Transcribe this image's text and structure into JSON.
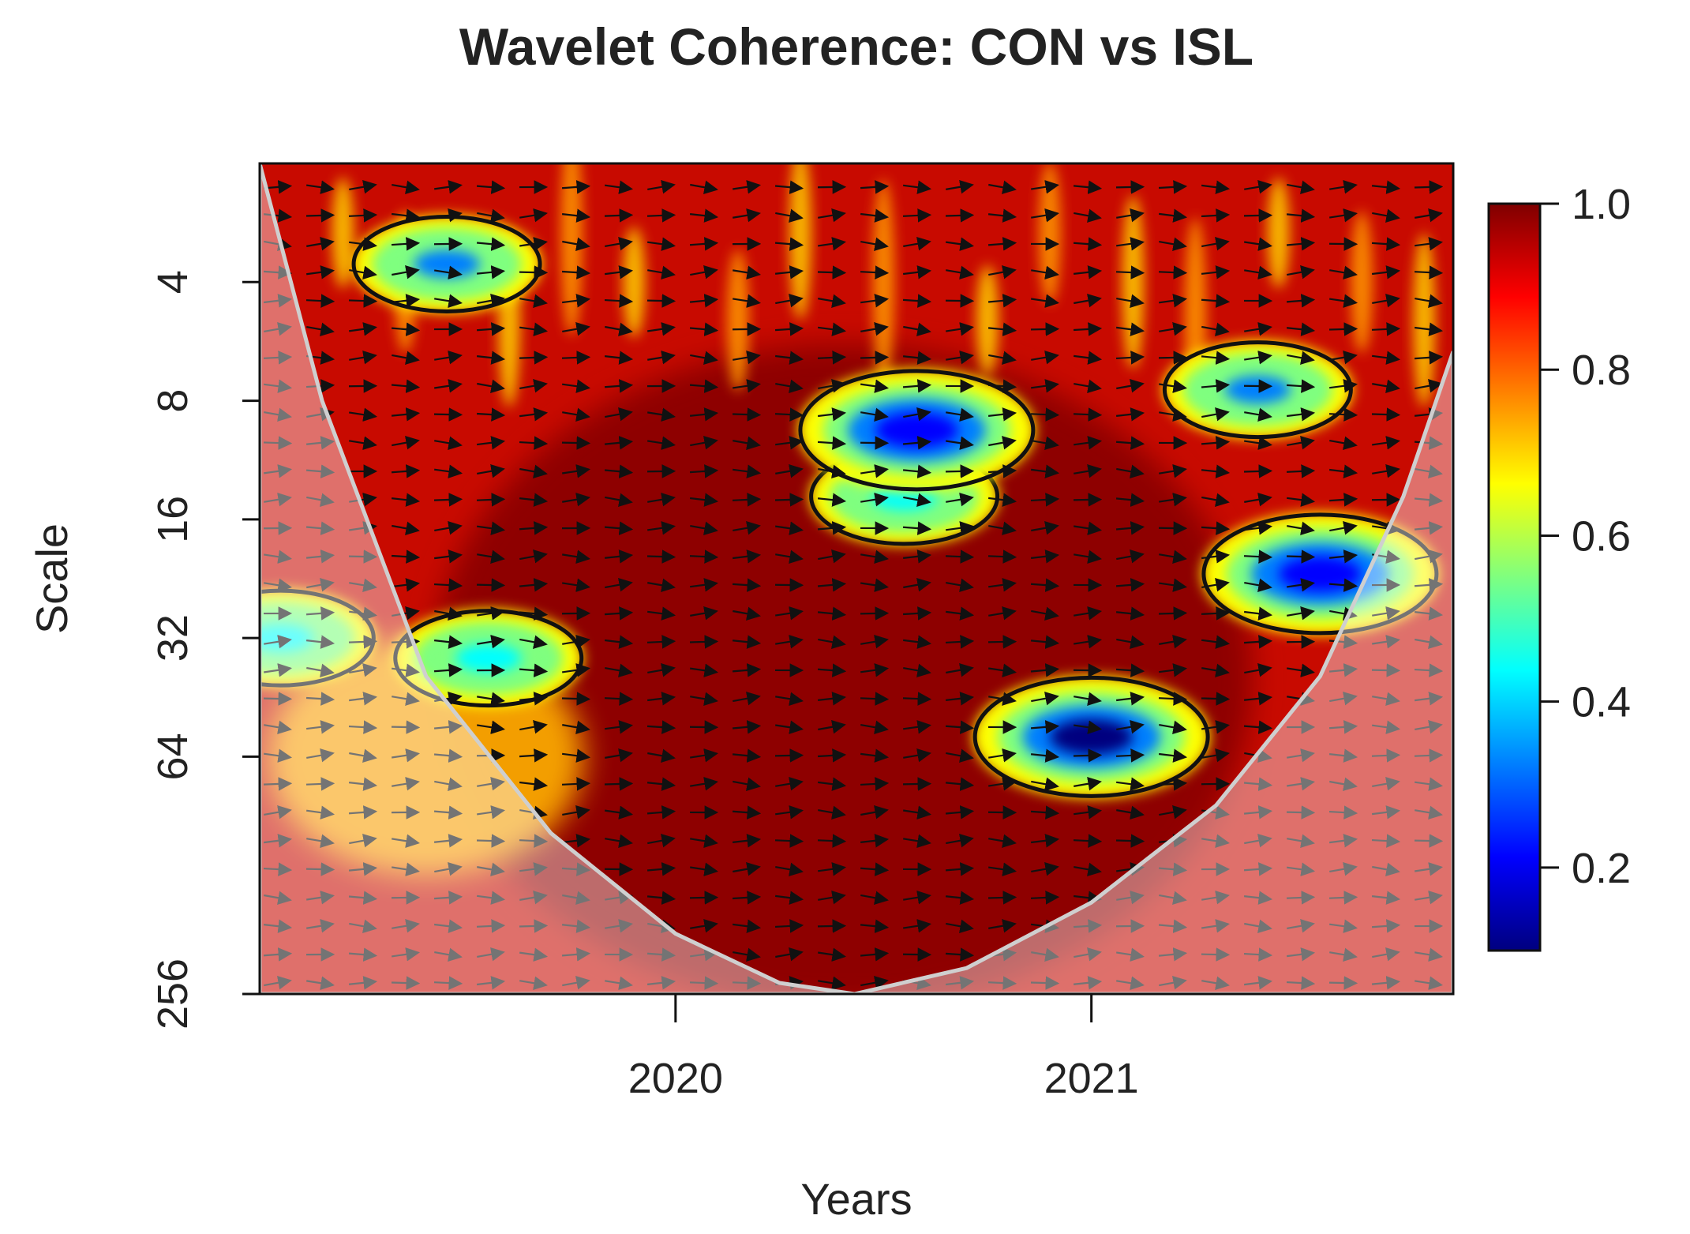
{
  "chart_data": {
    "type": "heatmap",
    "title": "Wavelet Coherence: CON vs ISL",
    "xlabel": "Years",
    "ylabel": "Scale",
    "x_ticks": [
      "2020",
      "2021"
    ],
    "x_tick_values": [
      2020.0,
      2021.0
    ],
    "xlim": [
      2019.0,
      2021.87
    ],
    "y_ticks": [
      "4",
      "8",
      "16",
      "32",
      "64",
      "256"
    ],
    "y_tick_values": [
      4,
      8,
      16,
      32,
      64,
      256
    ],
    "ylim": [
      2,
      256
    ],
    "y_scale": "log2, reversed (small scales at top)",
    "colorbar": {
      "ticks": [
        "1.0",
        "0.8",
        "0.6",
        "0.4",
        "0.2"
      ],
      "tick_values": [
        1.0,
        0.8,
        0.6,
        0.4,
        0.2
      ],
      "range": [
        0.1,
        1.0
      ],
      "colors": [
        "#00007f",
        "#0000ff",
        "#007fff",
        "#00ffff",
        "#7fff7f",
        "#ffff00",
        "#ff7f00",
        "#ff0000",
        "#7f0000"
      ]
    },
    "cone_of_influence": {
      "x": [
        2019.0,
        2019.15,
        2019.4,
        2019.7,
        2020.0,
        2020.25,
        2020.43,
        2020.7,
        2021.0,
        2021.3,
        2021.55,
        2021.75,
        2021.87
      ],
      "scale": [
        2,
        8,
        40,
        100,
        180,
        240,
        256,
        220,
        150,
        85,
        40,
        14,
        6
      ]
    },
    "regions": [
      {
        "label": "low-coherence island",
        "x": 2019.55,
        "scale": 36,
        "coherence": 0.45
      },
      {
        "label": "low-coherence island",
        "x": 2019.05,
        "scale": 32,
        "coherence": 0.4
      },
      {
        "label": "low-coherence island",
        "x": 2020.55,
        "scale": 14,
        "coherence": 0.45
      },
      {
        "label": "low-coherence island",
        "x": 2020.58,
        "scale": 9.5,
        "coherence": 0.2
      },
      {
        "label": "low-coherence island",
        "x": 2021.0,
        "scale": 57,
        "coherence": 0.15
      },
      {
        "label": "low-coherence island",
        "x": 2021.55,
        "scale": 22,
        "coherence": 0.2
      },
      {
        "label": "low-coherence island",
        "x": 2019.45,
        "scale": 3.6,
        "coherence": 0.35
      },
      {
        "label": "low-coherence island",
        "x": 2021.4,
        "scale": 7.5,
        "coherence": 0.35
      }
    ],
    "background_coherence": 0.95,
    "phase_arrows": "mostly pointing right (in-phase)"
  }
}
